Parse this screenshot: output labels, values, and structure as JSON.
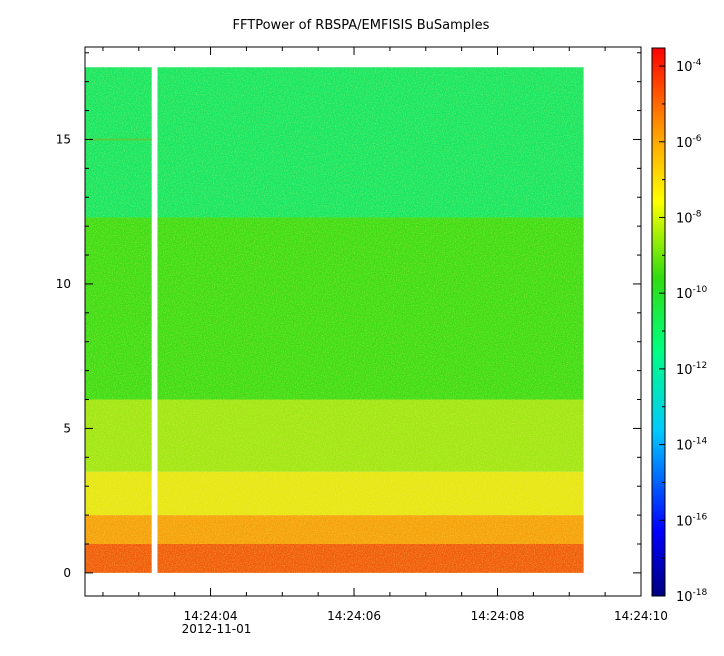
{
  "chart_data": {
    "type": "heatmap",
    "title": "FFTPower of RBSPA/EMFISIS  BuSamples",
    "xlabel": "",
    "ylabel": "",
    "x_axis": {
      "kind": "time",
      "date_label": "2012-11-01",
      "range": [
        "14:24:02.25",
        "14:24:10.00"
      ],
      "ticks": [
        "14:24:04",
        "14:24:06",
        "14:24:08",
        "14:24:10"
      ],
      "minor_tick_step_seconds": 0.5
    },
    "y_axis": {
      "range": [
        -0.8,
        18.2
      ],
      "ticks": [
        0,
        5,
        10,
        15
      ],
      "minor_tick_step": 1
    },
    "colorbar": {
      "scale": "log",
      "range": [
        1e-18,
        0.0003
      ],
      "tick_labels": [
        {
          "value": 0.0001,
          "base": "10",
          "exp": "-4"
        },
        {
          "value": 1e-06,
          "base": "10",
          "exp": "-6"
        },
        {
          "value": 1e-08,
          "base": "10",
          "exp": "-8"
        },
        {
          "value": 1e-10,
          "base": "10",
          "exp": "-10"
        },
        {
          "value": 1e-12,
          "base": "10",
          "exp": "-12"
        },
        {
          "value": 1e-14,
          "base": "10",
          "exp": "-14"
        },
        {
          "value": 1e-16,
          "base": "10",
          "exp": "-16"
        },
        {
          "value": 1e-18,
          "base": "10",
          "exp": "-18"
        }
      ],
      "colormap": "rainbow (blue-cyan-green-yellow-red)"
    },
    "data_extent": {
      "time": [
        "14:24:02.25",
        "14:24:09.20"
      ],
      "y": [
        0,
        17.5
      ]
    },
    "gap": {
      "time": [
        "14:24:03.18",
        "14:24:03.26"
      ]
    },
    "bands": [
      {
        "y": [
          0,
          1
        ],
        "power": 3e-07,
        "color": "#f05a0a"
      },
      {
        "y": [
          1,
          2
        ],
        "power": 3e-08,
        "color": "#f5a00a"
      },
      {
        "y": [
          2,
          3.5
        ],
        "power": 3e-09,
        "color": "#e6e614"
      },
      {
        "y": [
          3.5,
          6
        ],
        "power": 1e-09,
        "color": "#a0e614"
      },
      {
        "y": [
          6,
          12.3
        ],
        "power": 3e-11,
        "color": "#3cdc14"
      },
      {
        "y": [
          12.3,
          17.5
        ],
        "power": 1e-12,
        "color": "#14e664"
      }
    ],
    "annotations": [
      {
        "text": "faint line near y=15",
        "y": 15,
        "time": [
          "14:24:02.25",
          "14:24:03.18"
        ]
      }
    ]
  }
}
